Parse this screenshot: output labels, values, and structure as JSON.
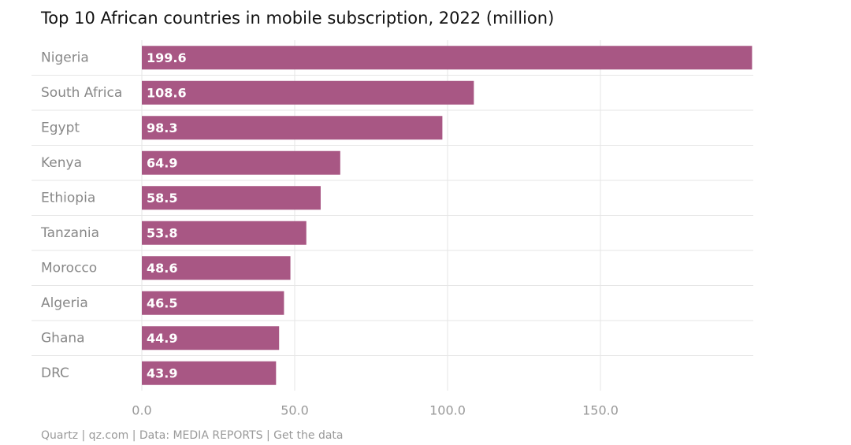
{
  "chart_data": {
    "type": "barh",
    "title": "Top 10 African countries in mobile subscription, 2022 (million)",
    "categories": [
      "Nigeria",
      "South Africa",
      "Egypt",
      "Kenya",
      "Ethiopia",
      "Tanzania",
      "Morocco",
      "Algeria",
      "Ghana",
      "DRC"
    ],
    "values": [
      199.6,
      108.6,
      98.3,
      64.9,
      58.5,
      53.8,
      48.6,
      46.5,
      44.9,
      43.9
    ],
    "color": "#a85784",
    "xlim": [
      0,
      200
    ],
    "xticks": [
      {
        "value": 0,
        "label": "0.0"
      },
      {
        "value": 50,
        "label": "50.0"
      },
      {
        "value": 100,
        "label": "100.0"
      },
      {
        "value": 150,
        "label": "150.0"
      }
    ],
    "grid": true,
    "source": "Quartz | qz.com | Data: MEDIA REPORTS | Get the data"
  }
}
